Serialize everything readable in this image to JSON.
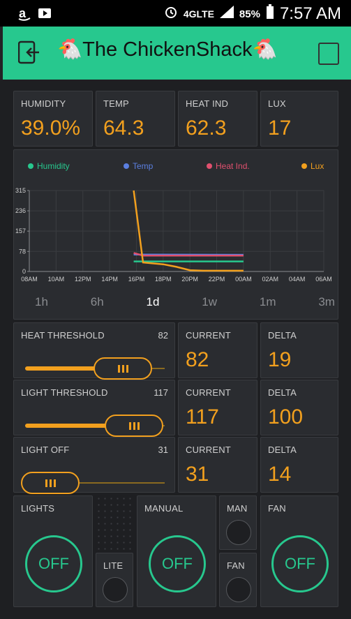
{
  "status_bar": {
    "network": "4GLTE",
    "battery": "85%",
    "time": "7:57 AM"
  },
  "header": {
    "title": "🐔The ChickenShack🐔"
  },
  "readings": [
    {
      "label": "HUMIDITY",
      "value": "39.0%"
    },
    {
      "label": "TEMP",
      "value": "64.3"
    },
    {
      "label": "HEAT IND",
      "value": "62.3"
    },
    {
      "label": "LUX",
      "value": "17"
    }
  ],
  "chart_data": {
    "type": "line",
    "x": [
      "08AM",
      "10AM",
      "12PM",
      "14PM",
      "16PM",
      "18PM",
      "20PM",
      "22PM",
      "00AM",
      "02AM",
      "04AM",
      "06AM"
    ],
    "yticks": [
      0,
      78,
      157,
      236,
      315
    ],
    "ylim": [
      0,
      315
    ],
    "grid": true,
    "legend_placement": "top",
    "series": [
      {
        "name": "Humidity",
        "color": "#27c88e",
        "points": [
          [
            15.8,
            39
          ],
          [
            24,
            39
          ]
        ]
      },
      {
        "name": "Temp",
        "color": "#5b7fe0",
        "points": [
          [
            15.8,
            66
          ],
          [
            24,
            65
          ]
        ]
      },
      {
        "name": "Heat Ind.",
        "color": "#e0506e",
        "points": [
          [
            15.8,
            72
          ],
          [
            16.5,
            62
          ],
          [
            24,
            62
          ]
        ]
      },
      {
        "name": "Lux",
        "color": "#f2a01e",
        "points": [
          [
            15.8,
            315
          ],
          [
            16.5,
            35
          ],
          [
            18,
            28
          ],
          [
            19,
            18
          ],
          [
            20,
            5
          ],
          [
            21,
            3
          ],
          [
            24,
            3
          ]
        ]
      }
    ]
  },
  "ranges": {
    "items": [
      "1h",
      "6h",
      "1d",
      "1w",
      "1m",
      "3m"
    ],
    "selected": "1d"
  },
  "controls": [
    {
      "label": "HEAT THRESHOLD",
      "max": "82",
      "level": 0.7,
      "current_label": "CURRENT",
      "current": "82",
      "delta_label": "DELTA",
      "delta": "19"
    },
    {
      "label": "LIGHT THRESHOLD",
      "max": "117",
      "level": 0.78,
      "current_label": "CURRENT",
      "current": "117",
      "delta_label": "DELTA",
      "delta": "100"
    },
    {
      "label": "LIGHT OFF",
      "max": "31",
      "level": 0.12,
      "current_label": "CURRENT",
      "current": "31",
      "delta_label": "DELTA",
      "delta": "14"
    }
  ],
  "buttons": {
    "lights_label": "LIGHTS",
    "lights_state": "OFF",
    "lite_label": "LITE",
    "manual_label": "MANUAL",
    "manual_state": "OFF",
    "man_label": "MAN",
    "fan_small_label": "FAN",
    "fan_label": "FAN",
    "fan_state": "OFF"
  },
  "colors": {
    "accent": "#27c88e",
    "value": "#f2a01e",
    "tile": "#2a2c30"
  }
}
